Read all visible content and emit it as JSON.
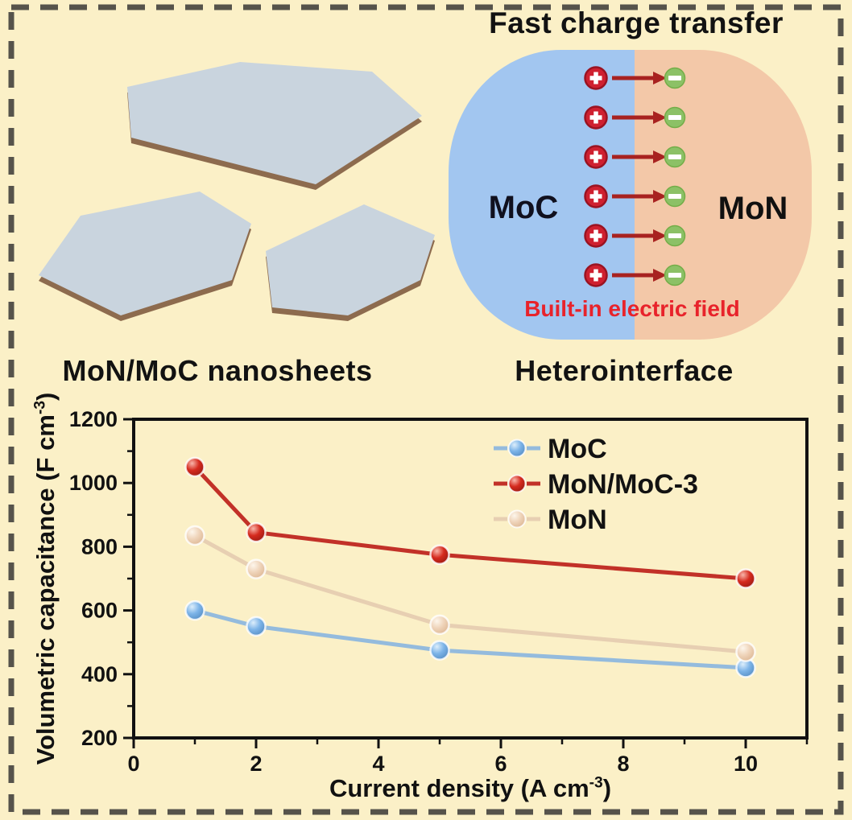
{
  "page": {
    "background": "#fbf0c7",
    "border_color": "#56534b"
  },
  "nanosheets": {
    "caption": "MoN/MoC nanosheets",
    "face_color": "#c9d4de",
    "edge_color": "#8d6b4e"
  },
  "heterointerface": {
    "title": "Fast charge transfer",
    "caption": "Heterointerface",
    "left_label": "MoC",
    "right_label": "MoN",
    "left_color": "#a2c6f0",
    "right_color": "#f3c8a8",
    "left_label_color": "#10101e",
    "right_label_color": "#101010",
    "field_label": "Built-in electric field",
    "field_label_color": "#e8232b",
    "charge_rows": 6,
    "plus_fill": "#cf2030",
    "plus_ring": "#9a1322",
    "minus_fill": "#8cc166",
    "minus_ring": "#74ad48",
    "arrow_color": "#a82220"
  },
  "chart_data": {
    "type": "line",
    "title": "",
    "xlabel": {
      "pre": "Current density (A cm",
      "sup": "-3",
      "post": ")"
    },
    "ylabel": {
      "pre": "Volumetric capacitance (F cm",
      "sup": "-3",
      "post": ")"
    },
    "x": [
      1,
      2,
      5,
      10
    ],
    "series": [
      {
        "name": "MoC",
        "values": [
          600,
          550,
          475,
          420
        ],
        "line_color": "#94bbdd",
        "marker_base": "#7db4e8",
        "marker_dark": "#4e86bd",
        "marker_light": "#ddeefb"
      },
      {
        "name": "MoN/MoC-3",
        "values": [
          1050,
          845,
          775,
          700
        ],
        "line_color": "#c23128",
        "marker_base": "#d52a1e",
        "marker_dark": "#8f1710",
        "marker_light": "#f8b5aa"
      },
      {
        "name": "MoN",
        "values": [
          835,
          730,
          555,
          470
        ],
        "line_color": "#e7cfb2",
        "marker_base": "#efd4ba",
        "marker_dark": "#d9b18c",
        "marker_light": "#fdf6ec"
      }
    ],
    "xlim": [
      0,
      11
    ],
    "ylim": [
      200,
      1200
    ],
    "xticks": [
      0,
      2,
      4,
      6,
      8,
      10
    ],
    "xminor": [
      1,
      3,
      5,
      7,
      9,
      11
    ],
    "yticks": [
      200,
      400,
      600,
      800,
      1000,
      1200
    ],
    "yminor": [
      300,
      500,
      700,
      900,
      1100
    ],
    "grid": false,
    "legend_position": "top-right",
    "axis_color": "#111111"
  }
}
